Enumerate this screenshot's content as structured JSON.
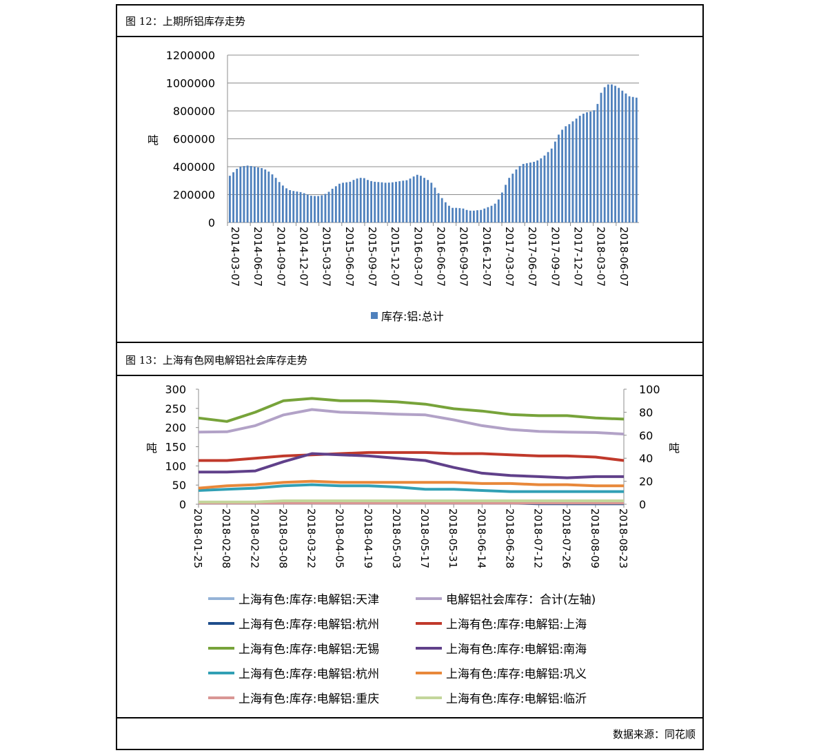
{
  "footer": {
    "source": "数据来源：同花顺"
  },
  "chart_data": [
    {
      "type": "bar",
      "caption": "图 12：上期所铝库存走势",
      "ylabel": "吨",
      "ylim": [
        0,
        1200000
      ],
      "yticks": [
        0,
        200000,
        400000,
        600000,
        800000,
        1000000,
        1200000
      ],
      "xticks": [
        "2014-03-07",
        "2014-06-07",
        "2014-09-07",
        "2014-12-07",
        "2015-03-07",
        "2015-06-07",
        "2015-09-07",
        "2015-12-07",
        "2016-03-07",
        "2016-06-07",
        "2016-09-07",
        "2016-12-07",
        "2017-03-07",
        "2017-06-07",
        "2017-09-07",
        "2017-12-07",
        "2018-03-07",
        "2018-06-07"
      ],
      "series": [
        {
          "name": "库存:铝:总计",
          "color": "#4f81bd",
          "values": [
            335000,
            360000,
            385000,
            400000,
            405000,
            408000,
            405000,
            400000,
            395000,
            390000,
            380000,
            365000,
            345000,
            320000,
            290000,
            265000,
            245000,
            232000,
            226000,
            222000,
            218000,
            210000,
            200000,
            192000,
            190000,
            190000,
            195000,
            205000,
            220000,
            242000,
            260000,
            278000,
            285000,
            288000,
            292000,
            305000,
            315000,
            320000,
            318000,
            305000,
            297000,
            292000,
            290000,
            288000,
            285000,
            286000,
            288000,
            292000,
            296000,
            300000,
            303000,
            315000,
            330000,
            342000,
            335000,
            320000,
            305000,
            285000,
            250000,
            210000,
            175000,
            145000,
            120000,
            105000,
            105000,
            103000,
            100000,
            90000,
            85000,
            85000,
            88000,
            90000,
            100000,
            110000,
            120000,
            135000,
            165000,
            215000,
            270000,
            320000,
            350000,
            380000,
            405000,
            420000,
            425000,
            430000,
            435000,
            445000,
            460000,
            480000,
            505000,
            530000,
            580000,
            630000,
            665000,
            690000,
            705000,
            725000,
            745000,
            765000,
            780000,
            790000,
            795000,
            805000,
            850000,
            930000,
            970000,
            990000,
            990000,
            980000,
            965000,
            945000,
            925000,
            905000,
            900000,
            895000
          ]
        }
      ]
    },
    {
      "type": "line",
      "caption": "图 13：上海有色网电解铝社会库存走势",
      "ylabel": "吨",
      "y2label": "吨",
      "ylim": [
        0,
        300
      ],
      "y2lim": [
        0,
        100
      ],
      "yticks": [
        0,
        50,
        100,
        150,
        200,
        250,
        300
      ],
      "y2ticks": [
        0,
        20,
        40,
        60,
        80,
        100
      ],
      "xticks": [
        "2018-01-25",
        "2018-02-08",
        "2018-02-22",
        "2018-03-08",
        "2018-03-22",
        "2018-04-05",
        "2018-04-19",
        "2018-05-03",
        "2018-05-17",
        "2018-05-31",
        "2018-06-14",
        "2018-06-28",
        "2018-07-12",
        "2018-07-26",
        "2018-08-09",
        "2018-08-23"
      ],
      "series": [
        {
          "name": "上海有色:库存:电解铝:天津",
          "axis": "right",
          "color": "#95b3d7",
          "values": [
            1,
            1,
            1,
            1,
            1,
            2,
            2,
            1,
            1,
            1,
            1,
            1,
            1,
            0.5,
            0.5,
            0.5
          ]
        },
        {
          "name": "电解铝社会库存：合计(左轴)",
          "axis": "left",
          "color": "#b2a2c7",
          "values": [
            188,
            189,
            205,
            233,
            247,
            240,
            238,
            235,
            233,
            220,
            205,
            195,
            190,
            188,
            187,
            183
          ]
        },
        {
          "name": "上海有色:库存:电解铝:杭州",
          "axis": "right",
          "color": "#1f4e8c",
          "values": [
            1,
            1,
            1,
            1,
            1,
            1,
            1,
            1,
            1,
            1,
            1,
            1,
            0.5,
            0.5,
            0.5,
            0.5
          ]
        },
        {
          "name": "上海有色:库存:电解铝:上海",
          "axis": "right",
          "color": "#c0392b",
          "values": [
            38,
            38,
            40,
            42,
            43,
            44,
            45,
            45,
            45,
            44,
            44,
            43,
            42,
            42,
            41,
            38
          ]
        },
        {
          "name": "上海有色:库存:电解铝:无锡",
          "axis": "right",
          "color": "#77a33a",
          "values": [
            75,
            72,
            80,
            90,
            92,
            90,
            90,
            89,
            87,
            83,
            81,
            78,
            77,
            77,
            75,
            74
          ]
        },
        {
          "name": "上海有色:库存:电解铝:南海",
          "axis": "right",
          "color": "#60408a",
          "values": [
            28,
            28,
            29,
            37,
            44,
            43,
            42,
            40,
            38,
            32,
            27,
            25,
            24,
            23,
            24,
            24
          ]
        },
        {
          "name": "上海有色:库存:电解铝:杭州",
          "axis": "right",
          "color": "#31a0b5",
          "values": [
            12,
            13,
            14,
            16,
            17,
            16,
            16,
            15,
            13,
            13,
            12,
            11,
            11,
            11,
            11,
            11
          ]
        },
        {
          "name": "上海有色:库存:电解铝:巩义",
          "axis": "right",
          "color": "#e8883a",
          "values": [
            14,
            16,
            17,
            19,
            20,
            19,
            19,
            19,
            19,
            19,
            18,
            18,
            17,
            17,
            16,
            16
          ]
        },
        {
          "name": "上海有色:库存:电解铝:重庆",
          "axis": "right",
          "color": "#d99694",
          "values": [
            1,
            1,
            1,
            1,
            1,
            1,
            1,
            1,
            1,
            1,
            1,
            1,
            1,
            1,
            1,
            1
          ]
        },
        {
          "name": "上海有色:库存:电解铝:临沂",
          "axis": "right",
          "color": "#c3d69b",
          "values": [
            2,
            2,
            2,
            3,
            3,
            3,
            3,
            3,
            3,
            3,
            3,
            3,
            3,
            3,
            3,
            3
          ]
        }
      ]
    }
  ]
}
